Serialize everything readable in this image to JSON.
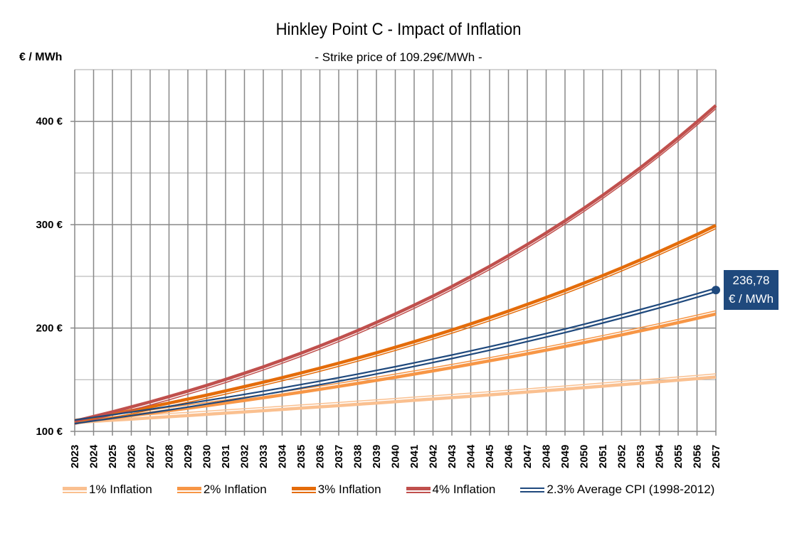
{
  "chart_data": {
    "type": "line",
    "title": "Hinkley Point C - Impact of Inflation",
    "subtitle": "- Strike price of 109.29€/MWh -",
    "ylabel": "€ / MWh",
    "xlabel": "",
    "ylim": [
      100,
      450
    ],
    "yticks": [
      100,
      200,
      300,
      400
    ],
    "ytick_labels": [
      "100 €",
      "200 €",
      "300 €",
      "400 €"
    ],
    "minor_grid_step": 50,
    "grid": true,
    "base_price": 109.29,
    "x": [
      2023,
      2024,
      2025,
      2026,
      2027,
      2028,
      2029,
      2030,
      2031,
      2032,
      2033,
      2034,
      2035,
      2036,
      2037,
      2038,
      2039,
      2040,
      2041,
      2042,
      2043,
      2044,
      2045,
      2046,
      2047,
      2048,
      2049,
      2050,
      2051,
      2052,
      2053,
      2054,
      2055,
      2056,
      2057
    ],
    "series": [
      {
        "name": "1% Inflation",
        "rate": 0.01,
        "color": "#fac090",
        "style": "thin-above",
        "values": [
          109.29,
          110.38,
          111.49,
          112.6,
          113.73,
          114.87,
          116.02,
          117.18,
          118.35,
          119.53,
          120.73,
          121.93,
          123.15,
          124.38,
          125.63,
          126.88,
          128.15,
          129.44,
          130.73,
          132.04,
          133.36,
          134.69,
          136.04,
          137.4,
          138.77,
          140.16,
          141.56,
          142.98,
          144.41,
          145.85,
          147.31,
          148.78,
          150.27,
          151.77,
          153.29
        ]
      },
      {
        "name": "2% Inflation",
        "rate": 0.02,
        "color": "#f79646",
        "style": "thin-above",
        "values": [
          109.29,
          111.48,
          113.71,
          115.98,
          118.3,
          120.67,
          123.08,
          125.54,
          128.05,
          130.61,
          133.23,
          135.89,
          138.61,
          141.38,
          144.21,
          147.09,
          150.04,
          153.04,
          156.1,
          159.22,
          162.4,
          165.65,
          168.96,
          172.34,
          175.79,
          179.31,
          182.89,
          186.55,
          190.28,
          194.09,
          197.97,
          201.93,
          205.97,
          210.09,
          214.29
        ]
      },
      {
        "name": "3% Inflation",
        "rate": 0.03,
        "color": "#e46c0a",
        "style": "thin-below",
        "values": [
          109.29,
          112.57,
          115.95,
          119.42,
          123.01,
          126.7,
          130.5,
          134.41,
          138.45,
          142.6,
          146.88,
          151.29,
          155.82,
          160.5,
          165.31,
          170.27,
          175.38,
          180.64,
          186.06,
          191.64,
          197.39,
          203.31,
          209.41,
          215.7,
          222.17,
          228.83,
          235.7,
          242.77,
          250.05,
          257.55,
          265.28,
          273.24,
          281.44,
          289.88,
          298.57
        ]
      },
      {
        "name": "4% Inflation",
        "rate": 0.04,
        "color": "#c0504d",
        "style": "thin-below",
        "values": [
          109.29,
          113.66,
          118.21,
          122.94,
          127.85,
          132.97,
          138.29,
          143.82,
          149.57,
          155.55,
          161.78,
          168.25,
          174.98,
          181.98,
          189.26,
          196.83,
          204.7,
          212.89,
          221.4,
          230.26,
          239.47,
          249.05,
          259.01,
          269.37,
          280.15,
          291.35,
          303.01,
          315.13,
          327.73,
          340.84,
          354.48,
          368.66,
          383.4,
          398.74,
          414.69
        ]
      },
      {
        "name": "2.3% Average CPI (1998-2012)",
        "rate": 0.023,
        "color": "#1f497d",
        "style": "double",
        "values": [
          109.29,
          111.8,
          114.37,
          117.0,
          119.69,
          122.45,
          125.26,
          128.14,
          131.09,
          134.11,
          137.19,
          140.35,
          143.58,
          146.88,
          150.26,
          153.71,
          157.25,
          160.86,
          164.56,
          168.35,
          172.22,
          176.18,
          180.23,
          184.38,
          188.62,
          192.96,
          197.4,
          201.94,
          206.58,
          211.33,
          216.19,
          221.17,
          226.25,
          231.46,
          236.78
        ]
      }
    ],
    "annotation": {
      "series": "2.3% Average CPI (1998-2012)",
      "x": 2057,
      "value_text": "236,78",
      "unit_text": "€ / MWh",
      "color": "#1f497d"
    },
    "legend_position": "bottom",
    "grid_color": "#888888"
  }
}
